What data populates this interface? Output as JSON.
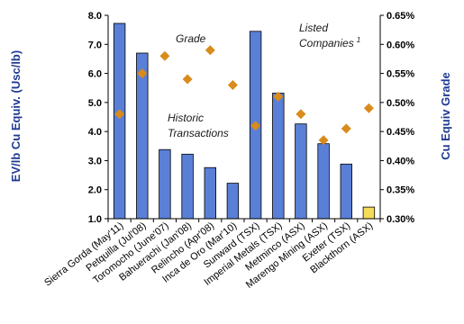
{
  "chart_data": {
    "type": "bar",
    "title": "",
    "ylabel": "EV/lb Cu Equiv. (Usc/lb)",
    "y2label": "Cu Equiv Grade",
    "ylim": [
      1.0,
      8.0
    ],
    "y2lim": [
      0.3,
      0.65
    ],
    "yticks": [
      "1.0",
      "2.0",
      "3.0",
      "4.0",
      "5.0",
      "6.0",
      "7.0",
      "8.0"
    ],
    "y2ticks": [
      "0.30%",
      "0.35%",
      "0.40%",
      "0.45%",
      "0.50%",
      "0.55%",
      "0.60%",
      "0.65%"
    ],
    "categories": [
      "Sierra Gorda (May'11)",
      "Petquilla (Jul'08)",
      "Toromocho (June'07)",
      "Bahuerachi (Jan'08)",
      "Relincho (Apr'08)",
      "Inca de Oro (Mar'10)",
      "Sunward (TSX)",
      "Imperial Metals (TSX)",
      "Metminco (ASX)",
      "Marengo Mining (ASX)",
      "Exeter (TSX)",
      "Blackthorn (ASX)"
    ],
    "series": [
      {
        "type": "bar",
        "axis": "left",
        "values": [
          7.72,
          6.7,
          3.38,
          3.22,
          2.76,
          2.22,
          7.45,
          5.32,
          4.26,
          3.58,
          2.88,
          1.4
        ]
      },
      {
        "type": "scatter",
        "axis": "right",
        "name": "Grade",
        "values": [
          0.48,
          0.55,
          0.58,
          0.54,
          0.59,
          0.53,
          0.46,
          0.51,
          0.48,
          0.435,
          0.455,
          0.49
        ]
      }
    ],
    "highlight_index": 11,
    "annotations": {
      "grade": "Grade",
      "historic_line1": "Historic",
      "historic_line2": "Transactions",
      "listed_line1": "Listed",
      "listed_line2": "Companies",
      "listed_sup": "1"
    },
    "colors": {
      "bar": "#5a7fd6",
      "bar_highlight": "#f4dc5a",
      "marker": "#d98b1c",
      "axis_title": "#1f3a93"
    },
    "grid": false,
    "legend": "none"
  }
}
